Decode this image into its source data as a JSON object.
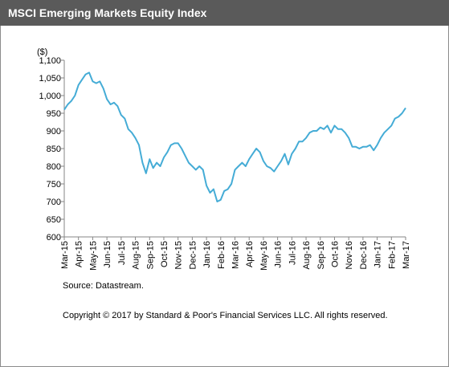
{
  "chart_data": {
    "type": "line",
    "title": "MSCI Emerging Markets Equity Index",
    "ylabel": "($)",
    "source": "Source: Datastream.",
    "copyright": "Copyright © 2017 by Standard & Poor's Financial Services LLC. All rights reserved.",
    "categories": [
      "Mar-15",
      null,
      null,
      null,
      "Apr-15",
      null,
      null,
      null,
      "May-15",
      null,
      null,
      null,
      "Jun-15",
      null,
      null,
      null,
      "Jul-15",
      null,
      null,
      null,
      "Aug-15",
      null,
      null,
      null,
      "Sep-15",
      null,
      null,
      null,
      "Oct-15",
      null,
      null,
      null,
      "Nov-15",
      null,
      null,
      null,
      "Dec-15",
      null,
      null,
      null,
      "Jan-16",
      null,
      null,
      null,
      "Feb-16",
      null,
      null,
      null,
      "Mar-16",
      null,
      null,
      null,
      "Apr-16",
      null,
      null,
      null,
      "May-16",
      null,
      null,
      null,
      "Jun-16",
      null,
      null,
      null,
      "Jul-16",
      null,
      null,
      null,
      "Aug-16",
      null,
      null,
      null,
      "Sep-16",
      null,
      null,
      null,
      "Oct-16",
      null,
      null,
      null,
      "Nov-16",
      null,
      null,
      null,
      "Dec-16",
      null,
      null,
      null,
      "Jan-17",
      null,
      null,
      null,
      "Feb-17",
      null,
      null,
      null,
      "Mar-17"
    ],
    "series": [
      {
        "name": "MSCI Emerging Markets Equity Index",
        "color": "#45acd6",
        "values": [
          960,
          975,
          985,
          1000,
          1030,
          1045,
          1060,
          1065,
          1040,
          1035,
          1040,
          1020,
          990,
          975,
          980,
          970,
          945,
          935,
          905,
          895,
          880,
          860,
          810,
          780,
          820,
          795,
          810,
          800,
          825,
          840,
          860,
          865,
          865,
          850,
          830,
          810,
          800,
          790,
          800,
          790,
          745,
          725,
          735,
          700,
          705,
          730,
          735,
          750,
          790,
          800,
          810,
          800,
          820,
          835,
          850,
          840,
          815,
          800,
          795,
          785,
          800,
          815,
          835,
          805,
          835,
          850,
          870,
          870,
          880,
          895,
          900,
          900,
          910,
          905,
          915,
          895,
          915,
          905,
          905,
          895,
          880,
          855,
          855,
          850,
          855,
          855,
          860,
          845,
          860,
          880,
          895,
          905,
          915,
          935,
          940,
          950,
          965
        ]
      }
    ],
    "ylim": [
      600,
      1100
    ],
    "yticks": [
      600,
      650,
      700,
      750,
      800,
      850,
      900,
      950,
      {
        "value": 1000,
        "label": "1,000"
      },
      {
        "value": 1050,
        "label": "1,050"
      },
      {
        "value": 1100,
        "label": "1,100"
      }
    ]
  }
}
